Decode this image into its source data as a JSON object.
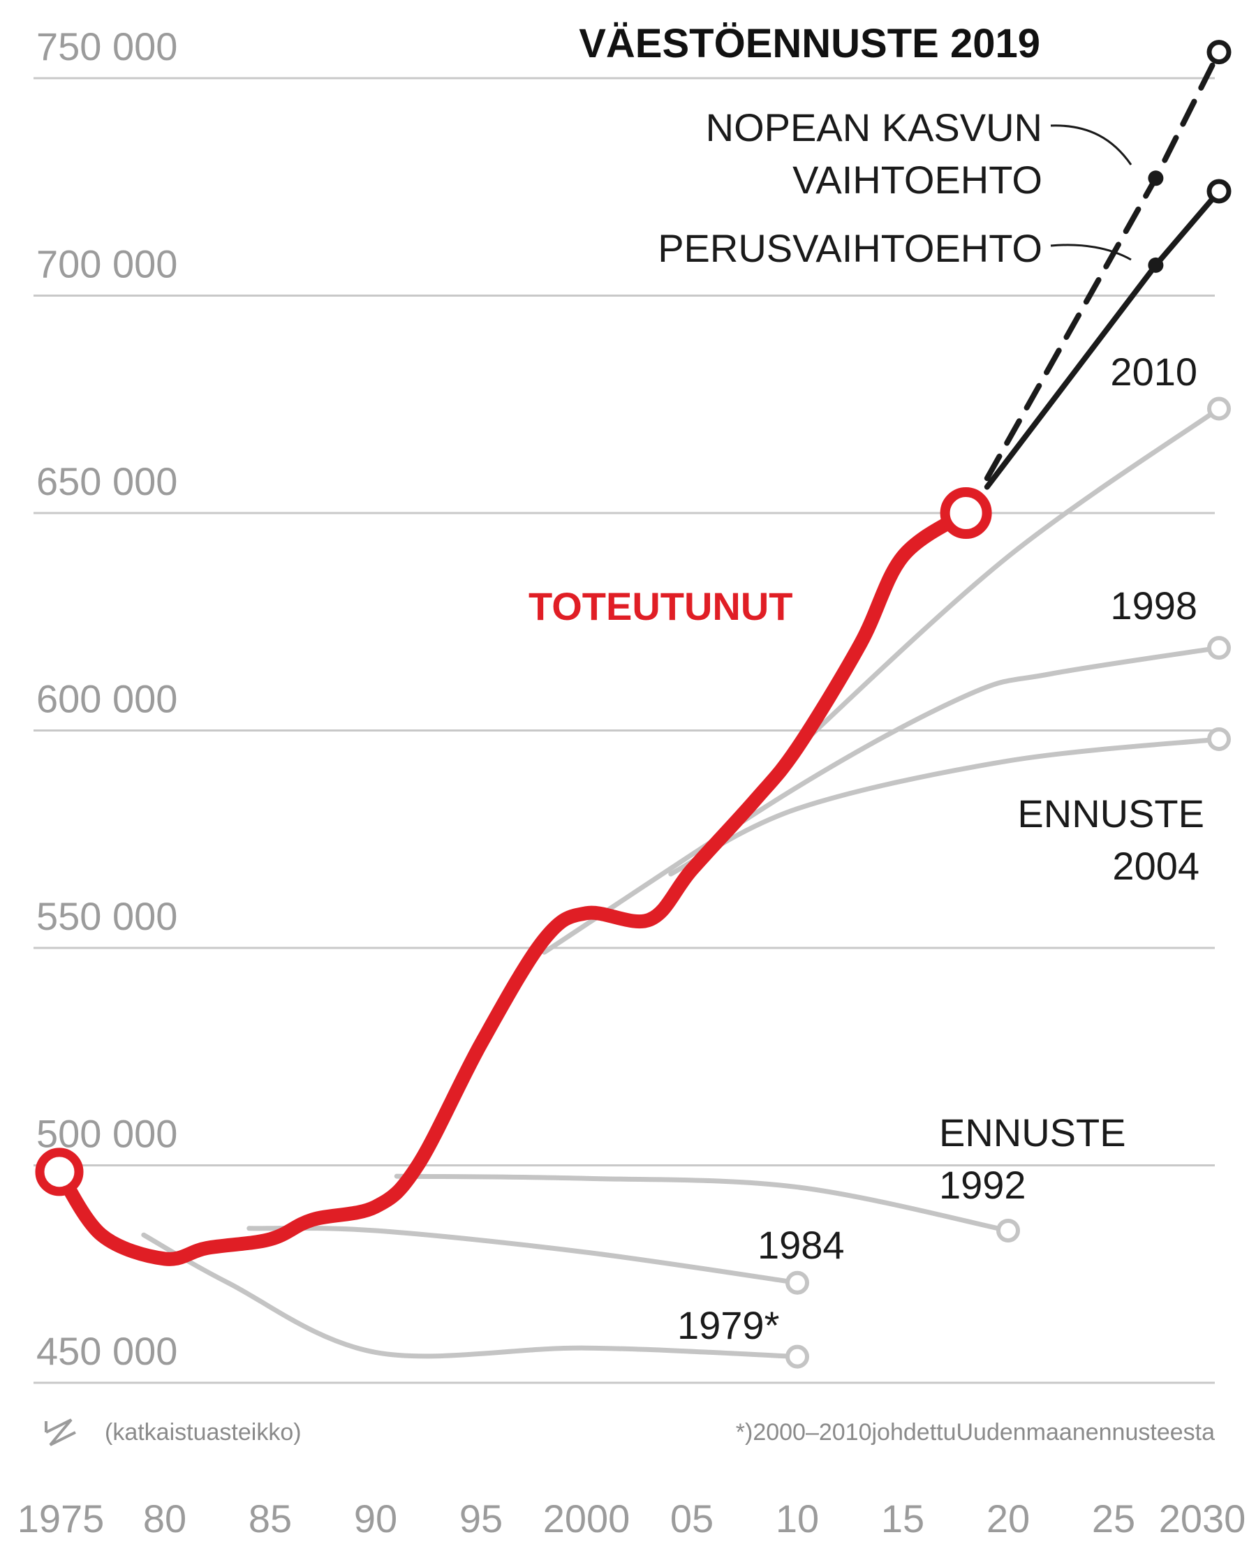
{
  "chart_data": {
    "type": "line",
    "title": "VÄESTÖENNUSTE 2019",
    "ylim": [
      450000,
      760000
    ],
    "xlim": [
      1975,
      2030
    ],
    "y_ticks": [
      750000,
      700000,
      650000,
      600000,
      550000,
      500000,
      450000
    ],
    "y_tick_labels": [
      "750 000",
      "700 000",
      "650 000",
      "600 000",
      "550 000",
      "500 000",
      "450 000"
    ],
    "x_tick_values": [
      1975,
      1980,
      1985,
      1990,
      1995,
      2000,
      2005,
      2010,
      2015,
      2020,
      2025,
      2030
    ],
    "x_tick_labels": [
      "1975",
      "80",
      "85",
      "90",
      "95",
      "2000",
      "05",
      "10",
      "15",
      "20",
      "25",
      "2030"
    ],
    "grid": true,
    "axis_break_note": "(katkaistuasteikko)",
    "footnote": "*)2000–2010johdettuUudenmaanennusteesta",
    "series": [
      {
        "name": "TOTEUTUNUT",
        "color": "#e01e25",
        "x": [
          1975,
          1977,
          1980,
          1982,
          1985,
          1987,
          1990,
          1992,
          1995,
          1998,
          2000,
          2003,
          2005,
          2008,
          2010,
          2013,
          2015,
          2018
        ],
        "y": [
          498500,
          484000,
          478500,
          481000,
          483000,
          487500,
          490500,
          500000,
          528000,
          552000,
          558000,
          556500,
          568000,
          584000,
          596000,
          620000,
          640000,
          650000
        ],
        "end_marker": true
      },
      {
        "name": "PERUSVAIHTOEHTO",
        "color": "#1a1a1a",
        "dashed": false,
        "x": [
          2019,
          2027,
          2030
        ],
        "y": [
          656000,
          707000,
          724000
        ]
      },
      {
        "name": "NOPEAN KASVUN VAIHTOEHTO",
        "color": "#1a1a1a",
        "dashed": true,
        "x": [
          2019,
          2027,
          2030
        ],
        "y": [
          658000,
          727000,
          756000
        ]
      },
      {
        "name": "2010",
        "color": "#c4c4c4",
        "x": [
          2010,
          2020,
          2030
        ],
        "y": [
          596000,
          640000,
          674000
        ]
      },
      {
        "name": "1998",
        "color": "#c4c4c4",
        "x": [
          1998,
          2010,
          2018,
          2022,
          2030
        ],
        "y": [
          549000,
          587000,
          608000,
          613000,
          619000
        ]
      },
      {
        "name": "ENNUSTE 2004",
        "color": "#c4c4c4",
        "x": [
          2004,
          2010,
          2020,
          2030
        ],
        "y": [
          567000,
          582000,
          593000,
          598000
        ]
      },
      {
        "name": "ENNUSTE 1992",
        "color": "#c4c4c4",
        "x": [
          1991,
          2000,
          2010,
          2020
        ],
        "y": [
          497500,
          497000,
          495000,
          485000
        ]
      },
      {
        "name": "1984",
        "color": "#c4c4c4",
        "x": [
          1984,
          1990,
          2000,
          2010
        ],
        "y": [
          485500,
          485000,
          480000,
          473000
        ]
      },
      {
        "name": "1979*",
        "color": "#c4c4c4",
        "x": [
          1979,
          1983,
          1990,
          2000,
          2010
        ],
        "y": [
          484000,
          473000,
          457000,
          458000,
          456000
        ]
      }
    ],
    "annotations": [
      "NOPEAN KASVUN",
      "VAIHTOEHTO",
      "PERUSVAIHTOEHTO",
      "2010",
      "1998",
      "ENNUSTE",
      "2004",
      "ENNUSTE",
      "1992",
      "1984",
      "1979*",
      "TOTEUTUNUT"
    ]
  }
}
